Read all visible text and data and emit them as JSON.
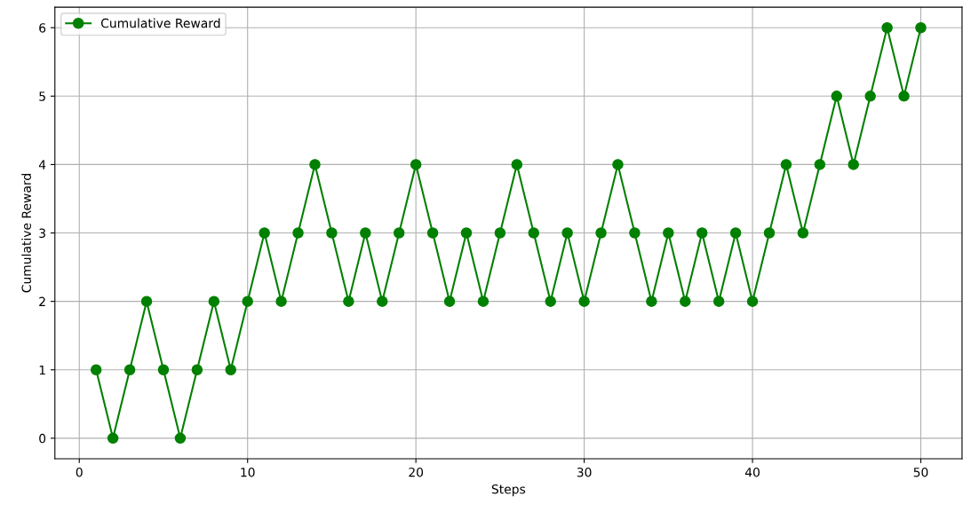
{
  "chart_data": {
    "type": "line",
    "xlabel": "Steps",
    "ylabel": "Cumulative Reward",
    "x": [
      1,
      2,
      3,
      4,
      5,
      6,
      7,
      8,
      9,
      10,
      11,
      12,
      13,
      14,
      15,
      16,
      17,
      18,
      19,
      20,
      21,
      22,
      23,
      24,
      25,
      26,
      27,
      28,
      29,
      30,
      31,
      32,
      33,
      34,
      35,
      36,
      37,
      38,
      39,
      40,
      41,
      42,
      43,
      44,
      45,
      46,
      47,
      48,
      49,
      50
    ],
    "series": [
      {
        "name": "Cumulative Reward",
        "color": "#008000",
        "values": [
          1,
          0,
          1,
          2,
          1,
          0,
          1,
          2,
          1,
          2,
          3,
          2,
          3,
          4,
          3,
          2,
          3,
          2,
          3,
          4,
          3,
          2,
          3,
          2,
          3,
          4,
          3,
          2,
          3,
          2,
          3,
          4,
          3,
          2,
          3,
          2,
          3,
          2,
          3,
          2,
          3,
          4,
          3,
          4,
          5,
          4,
          5,
          6,
          5,
          6
        ]
      }
    ],
    "xlim": [
      -1.45,
      52.45
    ],
    "ylim": [
      -0.3,
      6.3
    ],
    "xticks": [
      0,
      10,
      20,
      30,
      40,
      50
    ],
    "yticks": [
      0,
      1,
      2,
      3,
      4,
      5,
      6
    ],
    "grid": true,
    "legend": "top left",
    "marker": "circle",
    "line_style": "solid"
  }
}
